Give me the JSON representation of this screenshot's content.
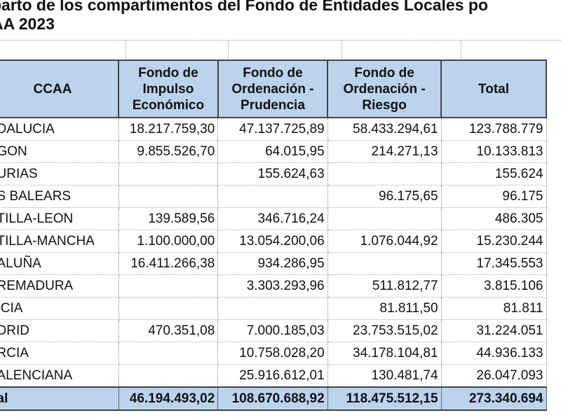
{
  "title_line1": "parto de los compartimentos del Fondo de Entidades Locales po",
  "title_line2": "AA 2023",
  "headers": [
    "CCAA",
    "Fondo de Impulso Económico",
    "Fondo de Ordenación - Prudencia",
    "Fondo de Ordenación - Riesgo",
    "Total"
  ],
  "rows": [
    [
      "DALUCIA",
      "18.217.759,30",
      "47.137.725,89",
      "58.433.294,61",
      "123.788.779"
    ],
    [
      "GON",
      "9.855.526,70",
      "64.015,95",
      "214.271,13",
      "10.133.813"
    ],
    [
      "URIAS",
      "",
      "155.624,63",
      "",
      "155.624"
    ],
    [
      "S BALEARS",
      "",
      "",
      "96.175,65",
      "96.175"
    ],
    [
      "TILLA-LEON",
      "139.589,56",
      "346.716,24",
      "",
      "486.305"
    ],
    [
      "TILLA-MANCHA",
      "1.100.000,00",
      "13.054.200,06",
      "1.076.044,92",
      "15.230.244"
    ],
    [
      "ALUÑA",
      "16.411.266,38",
      "934.286,95",
      "",
      "17.345.553"
    ],
    [
      "REMADURA",
      "",
      "3.303.293,96",
      "511.812,77",
      "3.815.106"
    ],
    [
      "ICIA",
      "",
      "",
      "81.811,50",
      "81.811"
    ],
    [
      "DRID",
      "470.351,08",
      "7.000.185,03",
      "23.753.515,02",
      "31.224.051"
    ],
    [
      "RCIA",
      "",
      "10.758.028,20",
      "34.178.104,81",
      "44.936.133"
    ],
    [
      "ALENCIANA",
      "",
      "25.916.612,01",
      "130.481,74",
      "26.047.093"
    ]
  ],
  "total_row": [
    "al",
    "46.194.493,02",
    "108.670.688,92",
    "118.475.512,15",
    "273.340.694"
  ]
}
